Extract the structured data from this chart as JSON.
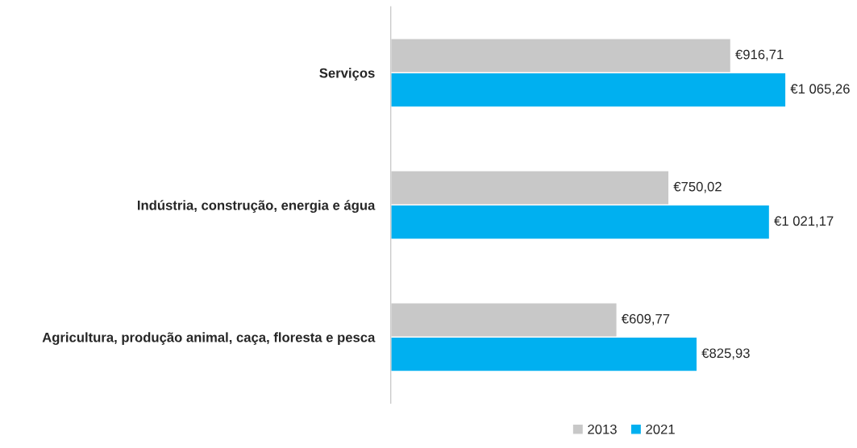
{
  "chart_data": {
    "type": "bar",
    "orientation": "horizontal",
    "categories": [
      "Serviços",
      "Indústria, construção, energia e água",
      "Agricultura, produção animal, caça, floresta e pesca"
    ],
    "series": [
      {
        "name": "2013",
        "color": "#c8c8c8",
        "values": [
          916.71,
          750.02,
          609.77
        ],
        "value_labels": [
          "€916,71",
          "€750,02",
          "€609,77"
        ]
      },
      {
        "name": "2021",
        "color": "#00b0f0",
        "values": [
          1065.26,
          1021.17,
          825.93
        ],
        "value_labels": [
          "€1 065,26",
          "€1 021,17",
          "€825,93"
        ]
      }
    ],
    "legend": "bottom",
    "grid": false
  }
}
